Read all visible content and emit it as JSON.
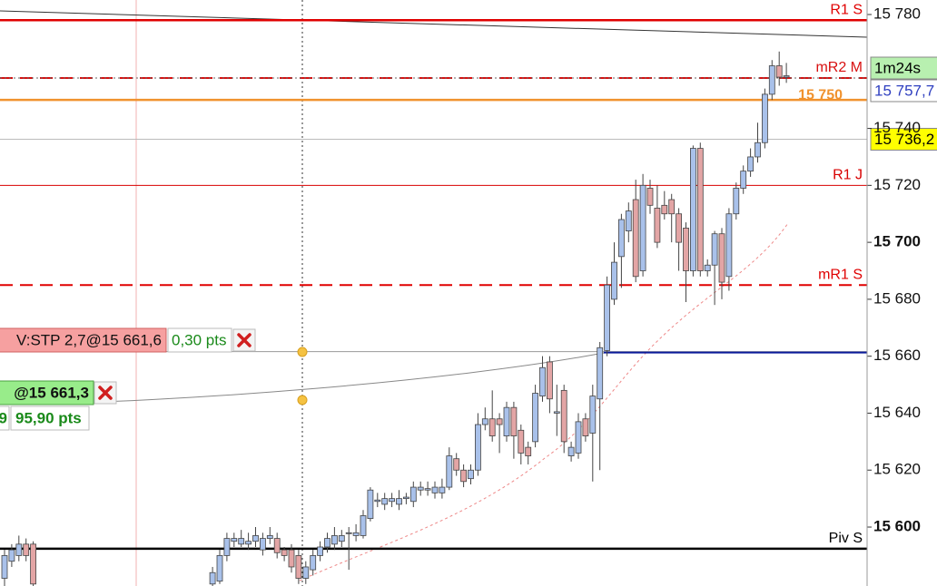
{
  "chart_data": {
    "type": "candlestick",
    "ylim": [
      15579.3,
      15785.1
    ],
    "yticks": [
      {
        "value": 15600,
        "label": "15 600",
        "bold": true
      },
      {
        "value": 15620,
        "label": "15 620"
      },
      {
        "value": 15640,
        "label": "15 640"
      },
      {
        "value": 15660,
        "label": "15 660"
      },
      {
        "value": 15680,
        "label": "15 680"
      },
      {
        "value": 15700,
        "label": "15 700",
        "bold": true
      },
      {
        "value": 15720,
        "label": "15 720"
      },
      {
        "value": 15740,
        "label": "15 740"
      },
      {
        "value": 15780,
        "label": "15 780"
      }
    ],
    "up_color": "#a9c1ea",
    "down_color": "#e3a5a5",
    "open": [
      15582,
      15588,
      15590,
      15594,
      15594,
      null,
      null,
      null,
      null,
      null,
      null,
      null,
      null,
      null,
      null,
      null,
      null,
      null,
      null,
      null,
      null,
      null,
      null,
      null,
      null,
      null,
      null,
      null,
      null,
      15580,
      15581,
      15590,
      15595,
      15594,
      15594,
      15595,
      15592,
      15596,
      15596,
      15592,
      15592,
      15590,
      15582,
      15585,
      15590,
      15593,
      15594,
      15595,
      15598,
      15597,
      15597,
      15603,
      15609,
      15608,
      15609,
      15608,
      15610,
      15609,
      15613,
      15613,
      15612,
      15612,
      15614,
      15624,
      15620,
      15617,
      15620,
      15636,
      15638,
      15638,
      15632,
      15642,
      15634,
      15628,
      15630,
      15646,
      15658,
      15640,
      15648,
      15625,
      15626,
      15638,
      15633,
      15645,
      15662,
      15680,
      15695,
      15704,
      15715,
      15690,
      15719,
      15712,
      15713,
      15715,
      15710,
      15705,
      15690,
      15733,
      15690,
      15692,
      15703,
      15688,
      15710,
      15719,
      15725,
      15730,
      15735,
      15752,
      15762,
      15758
    ],
    "high": [
      15592,
      15594,
      15597,
      15596,
      15595,
      null,
      null,
      null,
      null,
      null,
      null,
      null,
      null,
      null,
      null,
      null,
      null,
      null,
      null,
      null,
      null,
      null,
      null,
      null,
      null,
      null,
      null,
      null,
      null,
      15586,
      15592,
      15598,
      15598,
      15599,
      15598,
      15600,
      15598,
      15600,
      15598,
      15593,
      15594,
      15592,
      15588,
      15592,
      15595,
      15598,
      15600,
      15599,
      15600,
      15601,
      15606,
      15614,
      15612,
      15612,
      15612,
      15613,
      15612,
      15616,
      15616,
      15616,
      15616,
      15617,
      15628,
      15626,
      15622,
      15622,
      15640,
      15642,
      15648,
      15640,
      15644,
      15644,
      15636,
      15630,
      15650,
      15660,
      15660,
      15650,
      15650,
      15630,
      15640,
      15640,
      15650,
      15665,
      15688,
      15700,
      15710,
      15714,
      15722,
      15724,
      15722,
      15720,
      15718,
      15717,
      15712,
      15707,
      15734,
      15735,
      15694,
      15704,
      15705,
      15712,
      15721,
      15727,
      15733,
      15742,
      15754,
      15764,
      15767,
      15763
    ],
    "low": [
      15578,
      15586,
      15588,
      15588,
      15575,
      null,
      null,
      null,
      null,
      null,
      null,
      null,
      null,
      null,
      null,
      null,
      null,
      null,
      null,
      null,
      null,
      null,
      null,
      null,
      null,
      null,
      null,
      null,
      null,
      15578,
      15580,
      15588,
      15593,
      15593,
      15592,
      15593,
      15590,
      15594,
      15589,
      15588,
      15584,
      15580,
      15580,
      15583,
      15588,
      15591,
      15592,
      15593,
      15585,
      15595,
      15596,
      15602,
      15607,
      15606,
      15607,
      15606,
      15608,
      15607,
      15611,
      15611,
      15610,
      15610,
      15613,
      15618,
      15614,
      15615,
      15618,
      15634,
      15630,
      15626,
      15630,
      15624,
      15622,
      15622,
      15628,
      15644,
      15640,
      15632,
      15626,
      15623,
      15624,
      15630,
      15616,
      15620,
      15660,
      15678,
      15684,
      15700,
      15686,
      15688,
      15710,
      15698,
      15708,
      15700,
      15690,
      15679,
      15688,
      15688,
      15688,
      15678,
      15680,
      15683,
      15708,
      15717,
      15723,
      15728,
      15733,
      15750,
      15755,
      15756
    ],
    "close": [
      15590,
      15592,
      15594,
      15590,
      15580,
      null,
      null,
      null,
      null,
      null,
      null,
      null,
      null,
      null,
      null,
      null,
      null,
      null,
      null,
      null,
      null,
      null,
      null,
      null,
      null,
      null,
      null,
      null,
      null,
      15584,
      15590,
      15596,
      15596,
      15596,
      15595,
      15597,
      15596,
      15597,
      15591,
      15590,
      15586,
      15582,
      15586,
      15590,
      15593,
      15596,
      15597,
      15597,
      15598,
      15598,
      15604,
      15613,
      15609.5,
      15610,
      15610,
      15610,
      15610.5,
      15614,
      15614,
      15613.5,
      15614,
      15614,
      15625,
      15620,
      15616,
      15620,
      15636,
      15638,
      15632,
      15636,
      15642,
      15632,
      15626,
      15625,
      15647,
      15656,
      15645,
      15640.5,
      15630,
      15628,
      15637,
      15632,
      15646,
      15663,
      15685,
      15693,
      15708,
      15711,
      15688,
      15720,
      15713,
      15700,
      15710,
      15710,
      15700,
      15690,
      15733,
      15690,
      15692,
      15703,
      15686,
      15710,
      15719,
      15725,
      15730,
      15735,
      15752,
      15762,
      15758,
      15758.5
    ],
    "levels": [
      {
        "name": "R1 S",
        "value": 15778,
        "color": "#e00000",
        "width": 2.5,
        "dash": false
      },
      {
        "name": "mR2 M",
        "value": 15757.7,
        "color": "#d81010",
        "width": 2,
        "dash": true
      },
      {
        "name": "15 750",
        "value": 15750,
        "color": "#f0922e",
        "width": 2.5,
        "dash": false
      },
      {
        "name": "R1 J",
        "value": 15720,
        "color": "#d80000",
        "width": 1,
        "dash": false
      },
      {
        "name": "mR1 S",
        "value": 15685,
        "color": "#e00000",
        "width": 2,
        "dash": true
      },
      {
        "name": "Piv S",
        "value": 15592.4,
        "color": "#000000",
        "width": 2.5,
        "dash": false
      }
    ],
    "price_boxes": [
      {
        "label": "1m24s",
        "color": "#b8f0b0",
        "text_color": "#000000"
      },
      {
        "label": "15 757,7",
        "value": 15757.7,
        "color": "#ffffff",
        "text_color": "#3040c0"
      },
      {
        "label": "15 736,2",
        "value": 15736.2,
        "color": "#ffff00",
        "text_color": "#000000"
      }
    ],
    "orders": [
      {
        "label": "V:STP 2,7@15 661,6",
        "value": 15661.6,
        "pts": "0,30 pts"
      },
      {
        "label": "@15 661,3",
        "value": 15661.3,
        "qty": "9",
        "pts": "95,90 pts"
      }
    ]
  }
}
